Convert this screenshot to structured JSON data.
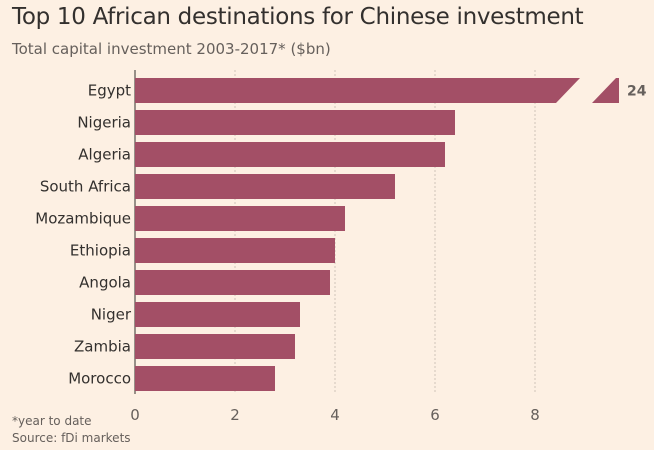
{
  "chart_data": {
    "type": "bar",
    "orientation": "horizontal",
    "title": "Top 10 African destinations for Chinese investment",
    "subtitle": "Total capital investment 2003-2017* ($bn)",
    "categories": [
      "Egypt",
      "Nigeria",
      "Algeria",
      "South Africa",
      "Mozambique",
      "Ethiopia",
      "Angola",
      "Niger",
      "Zambia",
      "Morocco"
    ],
    "values": [
      24,
      6.4,
      6.2,
      5.2,
      4.2,
      4.0,
      3.9,
      3.3,
      3.2,
      2.8
    ],
    "data_labels": {
      "Egypt": "24"
    },
    "axis_break": {
      "category": "Egypt",
      "note": "bar truncated"
    },
    "xlim": [
      0,
      10
    ],
    "xticks": [
      0,
      2,
      4,
      6,
      8
    ],
    "grid": true,
    "xlabel": "",
    "ylabel": "",
    "bar_color": "#a34f66",
    "footnote": "*year to date",
    "source": "Source: fDi markets"
  }
}
